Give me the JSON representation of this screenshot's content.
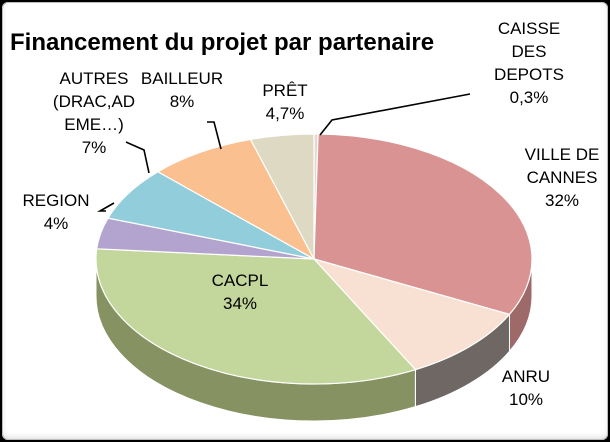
{
  "chart_data": {
    "type": "pie",
    "title": "Financement du projet par partenaire",
    "slices": [
      {
        "label": [
          "CAISSE",
          "DES",
          "DEPOTS"
        ],
        "value_label": "0,3%",
        "value": 0.3,
        "color": "#e8d7cf",
        "side": "#a69690"
      },
      {
        "label": [
          "VILLE DE",
          "CANNES"
        ],
        "value_label": "32%",
        "value": 32,
        "color": "#d99393",
        "side": "#9e6969"
      },
      {
        "label": [
          "ANRU"
        ],
        "value_label": "10%",
        "value": 10,
        "color": "#f8e1d2",
        "side": "#6e6764"
      },
      {
        "label": [
          "CACPL"
        ],
        "value_label": "34%",
        "value": 34,
        "color": "#c3d69b",
        "side": "#869262"
      },
      {
        "label": [
          "REGION"
        ],
        "value_label": "4%",
        "value": 4,
        "color": "#b3a3cf",
        "side": "#7f7195"
      },
      {
        "label": [
          "AUTRES",
          "(DRAC,AD",
          "EME…)"
        ],
        "value_label": "7%",
        "value": 7,
        "color": "#92cddc",
        "side": "#64949f"
      },
      {
        "label": [
          "BAILLEUR"
        ],
        "value_label": "8%",
        "value": 8,
        "color": "#fac090",
        "side": "#b88962"
      },
      {
        "label": [
          "PRÊT"
        ],
        "value_label": "4,7%",
        "value": 4.7,
        "color": "#ddd9c3",
        "side": "#a29e8c"
      }
    ]
  }
}
